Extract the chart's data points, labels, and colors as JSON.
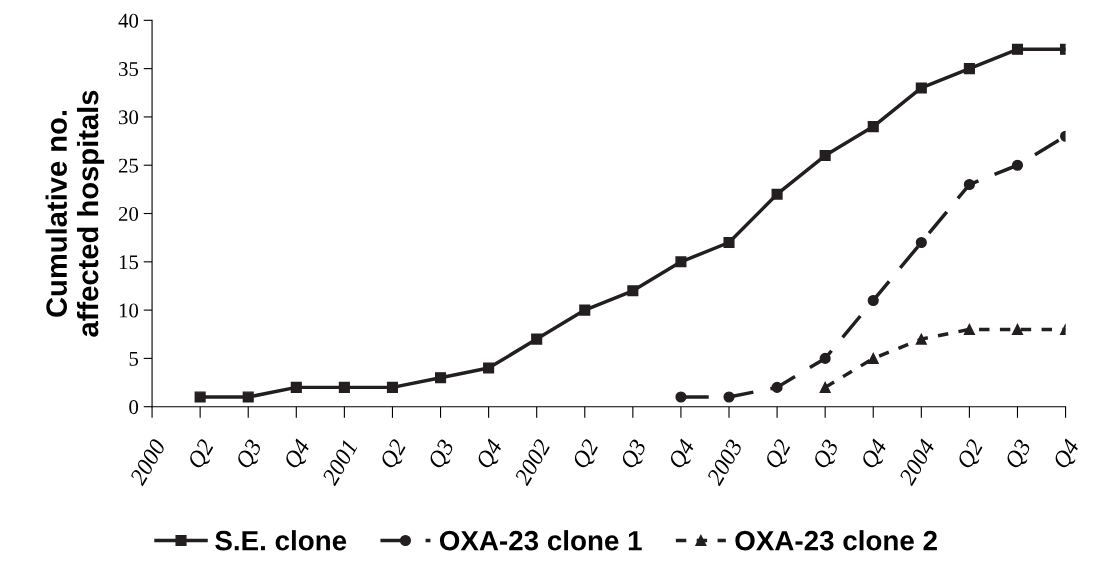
{
  "chart_data": {
    "type": "line",
    "ylabel": "Cumulative no.\naffected hospitals",
    "categories": [
      "2000",
      "Q2",
      "Q3",
      "Q4",
      "2001",
      "Q2",
      "Q3",
      "Q4",
      "2002",
      "Q2",
      "Q3",
      "Q4",
      "2003",
      "Q2",
      "Q3",
      "Q4",
      "2004",
      "Q2",
      "Q3",
      "Q4"
    ],
    "series": [
      {
        "name": "S.E. clone",
        "color": "#231f20",
        "marker": "square",
        "line_style": "solid",
        "values": [
          null,
          1,
          1,
          2,
          2,
          2,
          3,
          4,
          7,
          10,
          12,
          15,
          17,
          22,
          26,
          29,
          33,
          35,
          37,
          37
        ]
      },
      {
        "name": "OXA-23 clone 1",
        "color": "#231f20",
        "marker": "circle",
        "line_style": "dashed",
        "values": [
          null,
          null,
          null,
          null,
          null,
          null,
          null,
          null,
          null,
          null,
          null,
          1,
          1,
          2,
          5,
          11,
          17,
          23,
          25,
          28
        ]
      },
      {
        "name": "OXA-23 clone 2",
        "color": "#231f20",
        "marker": "triangle",
        "line_style": "dotted",
        "values": [
          null,
          null,
          null,
          null,
          null,
          null,
          null,
          null,
          null,
          null,
          null,
          null,
          null,
          null,
          2,
          5,
          7,
          8,
          8,
          8
        ]
      }
    ],
    "ylim": [
      0,
      40
    ],
    "yticks": [
      0,
      5,
      10,
      15,
      20,
      25,
      30,
      35,
      40
    ],
    "grid": false,
    "legend": "bottom"
  }
}
